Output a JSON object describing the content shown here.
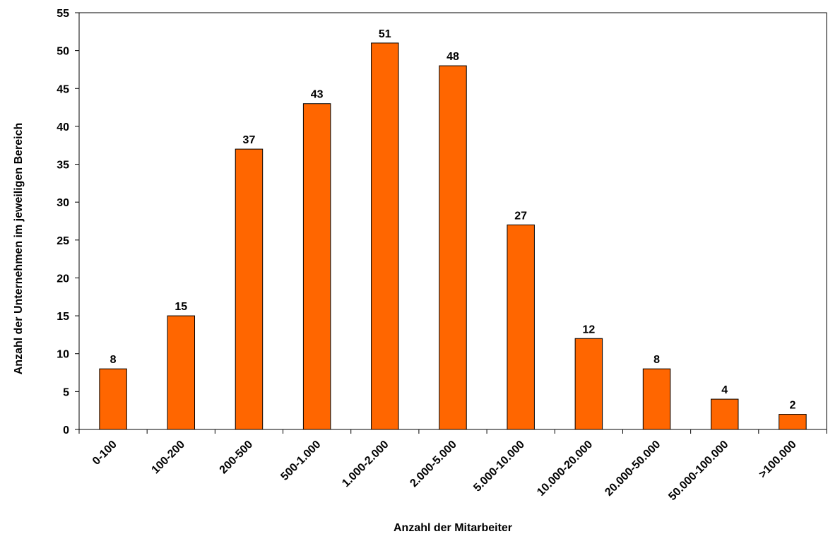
{
  "chart_data": {
    "type": "bar",
    "categories": [
      "0-100",
      "100-200",
      "200-500",
      "500-1.000",
      "1.000-2.000",
      "2.000-5.000",
      "5.000-10.000",
      "10.000-20.000",
      "20.000-50.000",
      "50.000-100.000",
      ">100.000"
    ],
    "values": [
      8,
      15,
      37,
      43,
      51,
      48,
      27,
      12,
      8,
      4,
      2
    ],
    "xlabel": "Anzahl der Mitarbeiter",
    "ylabel": "Anzahl der Unternehmen im jeweiligen Bereich",
    "ylim": [
      0,
      55
    ],
    "yticks": [
      0,
      5,
      10,
      15,
      20,
      25,
      30,
      35,
      40,
      45,
      50,
      55
    ],
    "grid": false,
    "data_labels": true,
    "bar_color": "#FF6600",
    "bar_edge_color": "#000000"
  }
}
